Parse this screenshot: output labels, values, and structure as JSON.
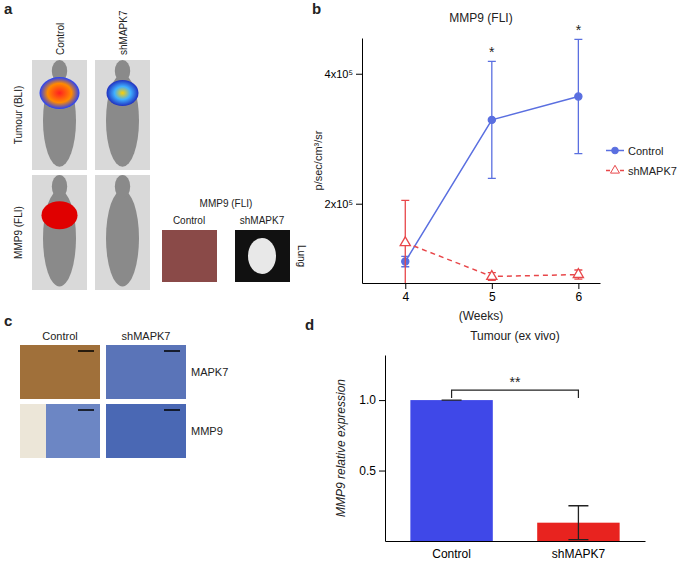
{
  "figure": {
    "panel_labels": [
      "a",
      "b",
      "c",
      "d"
    ],
    "panel_a": {
      "columns": [
        "Control",
        "shMAPK7"
      ],
      "rows": [
        "Tumour (BLI)",
        "MMP9 (FLI)"
      ],
      "inset_title": "MMP9 (FLI)",
      "inset_columns": [
        "Control",
        "shMAPK7"
      ],
      "inset_row": "Lung"
    },
    "panel_c": {
      "columns": [
        "Control",
        "shMAPK7"
      ],
      "rows": [
        "MAPK7",
        "MMP9"
      ]
    }
  },
  "chart_data": [
    {
      "type": "line",
      "title": "MMP9 (FLI)",
      "x_label": "(Weeks)",
      "y_label": "p/sec/cm³/sr",
      "x": [
        4,
        5,
        6
      ],
      "xlim": [
        3.5,
        6.25
      ],
      "xticks": [
        4,
        5,
        6
      ],
      "ylim": [
        78000,
        455000
      ],
      "yticks": [
        {
          "value": 200000,
          "label": "2x10⁵"
        },
        {
          "value": 400000,
          "label": "4x10⁵"
        }
      ],
      "series": [
        {
          "name": "Control",
          "color": "#5a6fe0",
          "marker": "circle",
          "line_style": "solid",
          "values": [
            111000,
            329000,
            365000
          ],
          "errors": [
            8000,
            90000,
            88000
          ]
        },
        {
          "name": "shMAPK7",
          "color": "#e8474a",
          "marker": "triangle",
          "line_style": "dashed",
          "values": [
            140000,
            88000,
            91000
          ],
          "errors": [
            65000,
            6000,
            7000
          ]
        }
      ],
      "annotations": [
        {
          "text": "*",
          "x": 5
        },
        {
          "text": "*",
          "x": 6
        }
      ],
      "legend": "right"
    },
    {
      "type": "bar",
      "title": "Tumour (ex vivo)",
      "y_label": "MMP9 relative expression",
      "categories": [
        "Control",
        "shMAPK7"
      ],
      "values": [
        1.0,
        0.13
      ],
      "errors": [
        0,
        0.12
      ],
      "colors": [
        "#3f48e8",
        "#e8231f"
      ],
      "ylim": [
        0,
        1.32
      ],
      "yticks": [
        0.5,
        {
          "value": 1,
          "label": "1.0"
        }
      ],
      "annotations": [
        {
          "text": "**"
        }
      ]
    }
  ]
}
